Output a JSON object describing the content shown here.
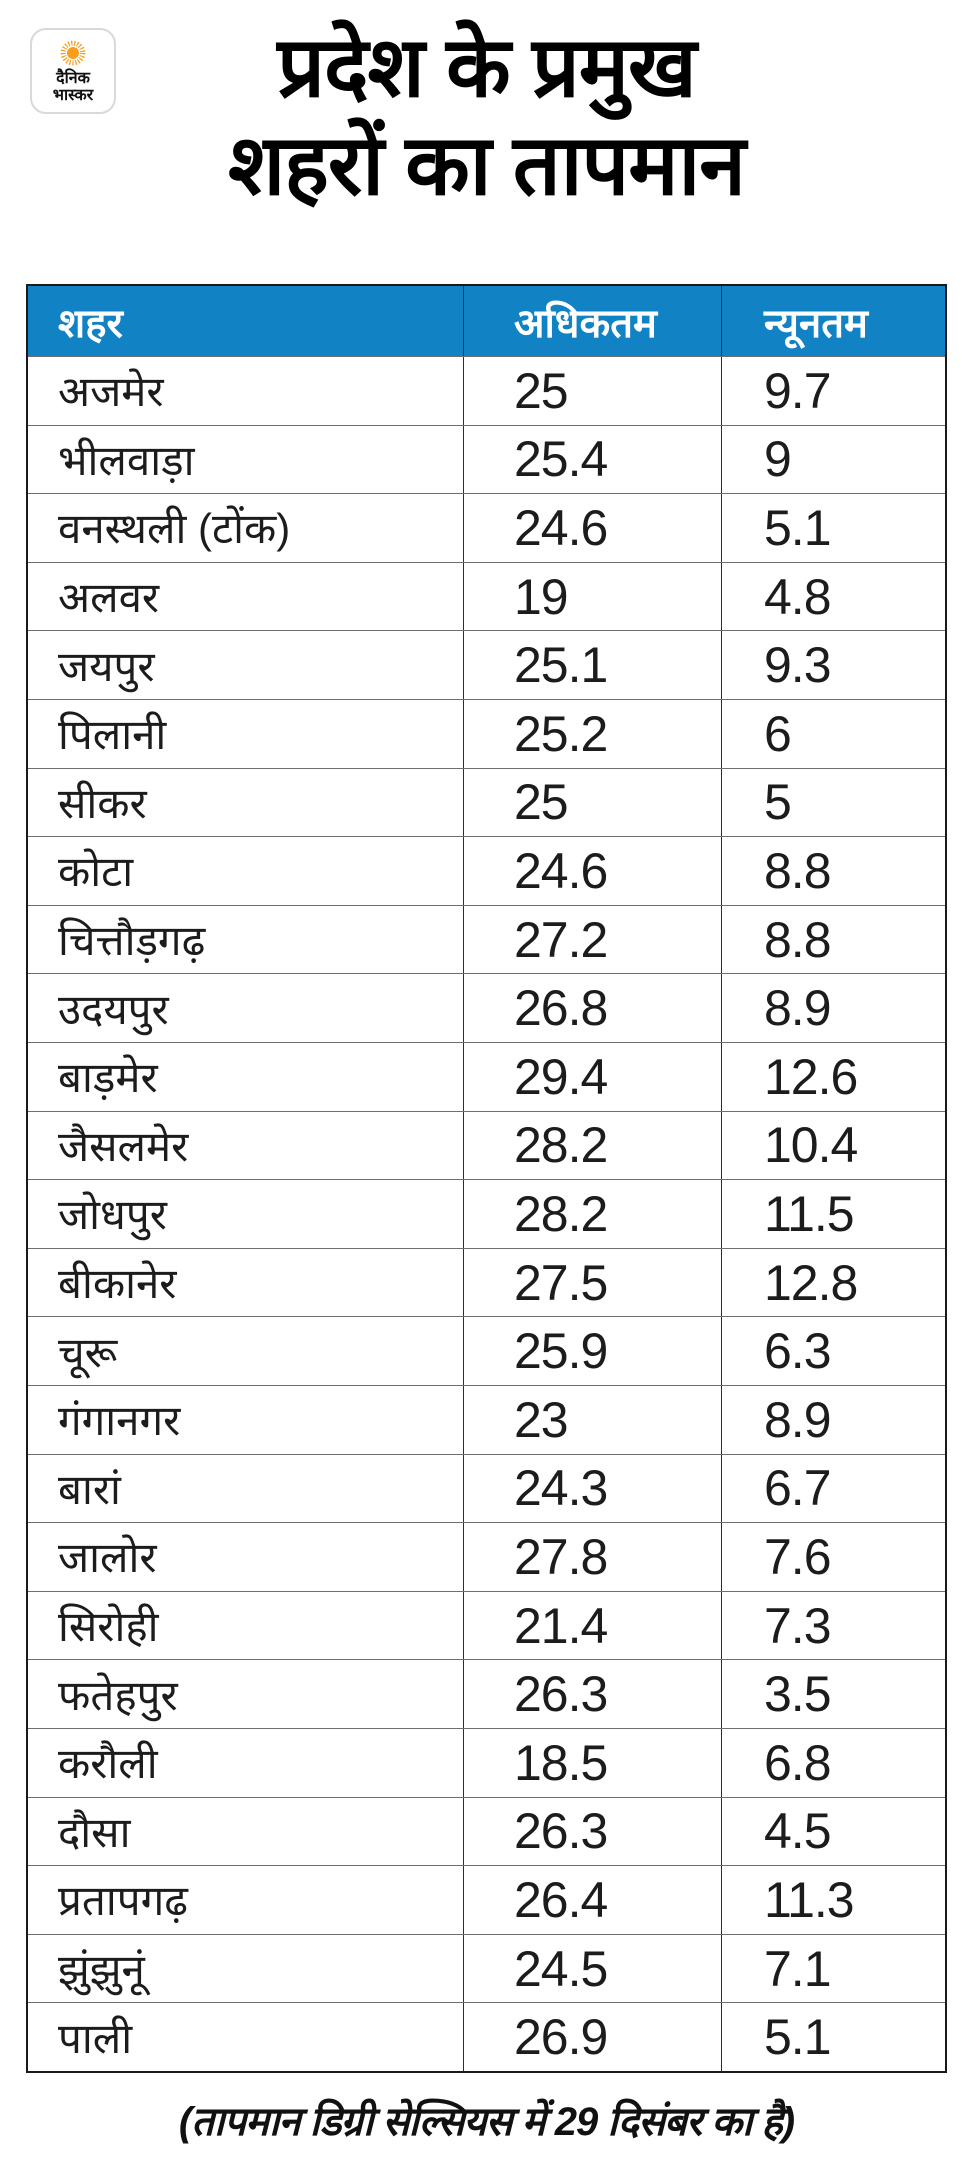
{
  "logo": {
    "brand_line1": "दैनिक",
    "brand_line2": "भास्कर",
    "sun_color": "#f79e1b"
  },
  "title": {
    "line1": "प्रदेश के प्रमुख",
    "line2": "शहरों का तापमान"
  },
  "footer": {
    "note": "(तापमान डिग्री सेल्सियस में 29 दिसंबर का है)"
  },
  "colors": {
    "header_bg": "#1182c4",
    "header_text": "#ffffff",
    "body_text": "#1c1c1c",
    "outer_border": "#1a1a1a",
    "row_divider": "#6f6f6f",
    "background": "#ffffff",
    "logo_sun": "#f79e1b"
  },
  "chart_data": {
    "type": "table",
    "title": "प्रदेश के प्रमुख शहरों का तापमान",
    "columns": [
      "शहर",
      "अधिकतम",
      "न्यूनतम"
    ],
    "rows": [
      [
        "अजमेर",
        25,
        9.7
      ],
      [
        "भीलवाड़ा",
        25.4,
        9
      ],
      [
        "वनस्थली (टोंक)",
        24.6,
        5.1
      ],
      [
        "अलवर",
        19,
        4.8
      ],
      [
        "जयपुर",
        25.1,
        9.3
      ],
      [
        "पिलानी",
        25.2,
        6
      ],
      [
        "सीकर",
        25,
        5
      ],
      [
        "कोटा",
        24.6,
        8.8
      ],
      [
        "चित्तौड़गढ़",
        27.2,
        8.8
      ],
      [
        "उदयपुर",
        26.8,
        8.9
      ],
      [
        "बाड़मेर",
        29.4,
        12.6
      ],
      [
        "जैसलमेर",
        28.2,
        10.4
      ],
      [
        "जोधपुर",
        28.2,
        11.5
      ],
      [
        "बीकानेर",
        27.5,
        12.8
      ],
      [
        "चूरू",
        25.9,
        6.3
      ],
      [
        "गंगानगर",
        23,
        8.9
      ],
      [
        "बारां",
        24.3,
        6.7
      ],
      [
        "जालोर",
        27.8,
        7.6
      ],
      [
        "सिरोही",
        21.4,
        7.3
      ],
      [
        "फतेहपुर",
        26.3,
        3.5
      ],
      [
        "करौली",
        18.5,
        6.8
      ],
      [
        "दौसा",
        26.3,
        4.5
      ],
      [
        "प्रतापगढ़",
        26.4,
        11.3
      ],
      [
        "झुंझुनूं",
        24.5,
        7.1
      ],
      [
        "पाली",
        26.9,
        5.1
      ]
    ],
    "note": "(तापमान डिग्री सेल्सियस में 29 दिसंबर का है)",
    "units": "डिग्री सेल्सियस",
    "legend_position": "none",
    "grid": true
  }
}
